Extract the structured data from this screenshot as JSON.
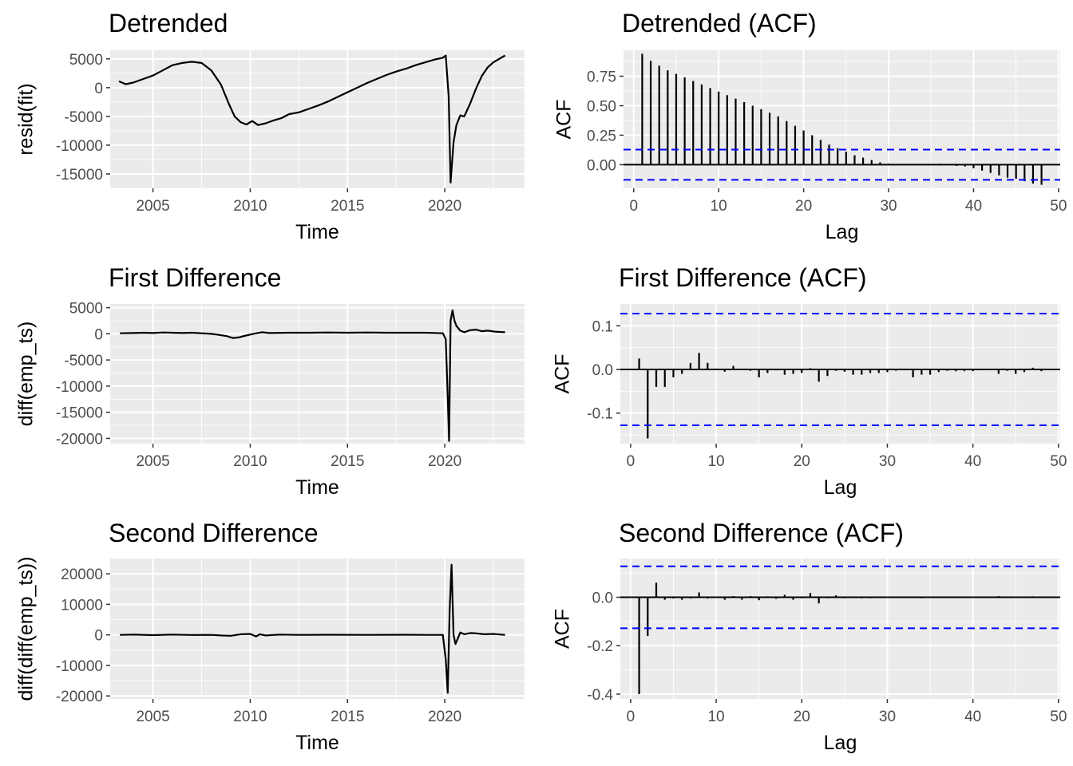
{
  "chart_data": [
    {
      "type": "line",
      "title": "Detrended",
      "xlabel": "Time",
      "ylabel": "resid(fit)",
      "xlim": [
        2002.8,
        2024.1
      ],
      "ylim": [
        -17500,
        6500
      ],
      "xticks": [
        2005,
        2010,
        2015,
        2020
      ],
      "yticks": [
        5000,
        0,
        -5000,
        -10000,
        -15000
      ],
      "ytick_labels": [
        "5000",
        "0",
        "-5000",
        "-10000",
        "-15000"
      ],
      "grid": true,
      "series": [
        {
          "x": [
            2003.25,
            2003.6,
            2004.0,
            2004.5,
            2005.0,
            2005.5,
            2006.0,
            2006.5,
            2007.0,
            2007.5,
            2008.0,
            2008.5,
            2008.9,
            2009.2,
            2009.5,
            2009.8,
            2010.1,
            2010.4,
            2010.8,
            2011.2,
            2011.6,
            2012.0,
            2012.5,
            2013.0,
            2013.5,
            2014.0,
            2014.5,
            2015.0,
            2015.5,
            2016.0,
            2016.5,
            2017.0,
            2017.5,
            2018.0,
            2018.5,
            2019.0,
            2019.5,
            2019.9,
            2020.05,
            2020.2,
            2020.3,
            2020.45,
            2020.6,
            2020.8,
            2021.0,
            2021.3,
            2021.6,
            2021.9,
            2022.2,
            2022.5,
            2022.8,
            2023.1
          ],
          "y": [
            1100,
            600,
            900,
            1500,
            2100,
            3000,
            3900,
            4300,
            4500,
            4300,
            3000,
            500,
            -2800,
            -5000,
            -6000,
            -6400,
            -5800,
            -6500,
            -6200,
            -5700,
            -5300,
            -4600,
            -4300,
            -3700,
            -3100,
            -2400,
            -1600,
            -800,
            0,
            800,
            1500,
            2200,
            2800,
            3300,
            3900,
            4400,
            4900,
            5200,
            5600,
            -1500,
            -16500,
            -9500,
            -6500,
            -4800,
            -5000,
            -2800,
            -200,
            2000,
            3500,
            4400,
            5000,
            5600
          ]
        }
      ]
    },
    {
      "type": "bar",
      "title": "Detrended (ACF)",
      "xlabel": "Lag",
      "ylabel": "ACF",
      "xlim": [
        -1.2,
        50.2
      ],
      "ylim": [
        -0.2,
        0.97
      ],
      "xticks": [
        0,
        10,
        20,
        30,
        40,
        50
      ],
      "yticks": [
        0.75,
        0.5,
        0.25,
        0.0
      ],
      "ytick_labels": [
        "0.75",
        "0.50",
        "0.25",
        "0.00"
      ],
      "confidence_band": 0.128,
      "grid": true,
      "lags": [
        1,
        2,
        3,
        4,
        5,
        6,
        7,
        8,
        9,
        10,
        11,
        12,
        13,
        14,
        15,
        16,
        17,
        18,
        19,
        20,
        21,
        22,
        23,
        24,
        25,
        26,
        27,
        28,
        29,
        30,
        31,
        32,
        33,
        34,
        35,
        36,
        37,
        38,
        39,
        40,
        41,
        42,
        43,
        44,
        45,
        46,
        47,
        48
      ],
      "values": [
        0.94,
        0.88,
        0.84,
        0.8,
        0.77,
        0.74,
        0.71,
        0.68,
        0.65,
        0.62,
        0.59,
        0.56,
        0.53,
        0.5,
        0.47,
        0.44,
        0.41,
        0.37,
        0.33,
        0.29,
        0.25,
        0.21,
        0.17,
        0.14,
        0.11,
        0.08,
        0.06,
        0.04,
        0.02,
        0.01,
        0.005,
        0.002,
        0.0,
        -0.002,
        -0.004,
        0.008,
        -0.006,
        -0.01,
        -0.015,
        -0.03,
        -0.05,
        -0.07,
        -0.09,
        -0.11,
        -0.12,
        -0.14,
        -0.16,
        -0.17
      ]
    },
    {
      "type": "line",
      "title": "First Difference",
      "xlabel": "Time",
      "ylabel": "diff(emp_ts)",
      "xlim": [
        2002.8,
        2024.1
      ],
      "ylim": [
        -21000,
        5700
      ],
      "xticks": [
        2005,
        2010,
        2015,
        2020
      ],
      "yticks": [
        5000,
        0,
        -5000,
        -10000,
        -15000,
        -20000
      ],
      "ytick_labels": [
        "5000",
        "0",
        "-5000",
        "-10000",
        "-15000",
        "-20000"
      ],
      "grid": true,
      "series": [
        {
          "x": [
            2003.3,
            2004.0,
            2004.5,
            2005.0,
            2005.5,
            2006.0,
            2006.5,
            2007.0,
            2007.5,
            2008.0,
            2008.4,
            2008.8,
            2009.1,
            2009.4,
            2009.7,
            2010.0,
            2010.3,
            2010.6,
            2011.0,
            2012.0,
            2013.0,
            2014.0,
            2015.0,
            2016.0,
            2017.0,
            2018.0,
            2019.0,
            2019.9,
            2020.05,
            2020.15,
            2020.22,
            2020.3,
            2020.4,
            2020.5,
            2020.6,
            2020.8,
            2021.0,
            2021.3,
            2021.6,
            2021.9,
            2022.2,
            2022.6,
            2023.1
          ],
          "y": [
            100,
            150,
            200,
            150,
            250,
            200,
            150,
            200,
            100,
            0,
            -200,
            -450,
            -800,
            -700,
            -400,
            -150,
            100,
            300,
            150,
            200,
            200,
            250,
            200,
            250,
            200,
            200,
            200,
            100,
            -1000,
            -12000,
            -20500,
            2500,
            4500,
            2500,
            1500,
            600,
            300,
            700,
            800,
            500,
            600,
            400,
            300
          ]
        }
      ]
    },
    {
      "type": "bar",
      "title": "First Difference (ACF)",
      "xlabel": "Lag",
      "ylabel": "ACF",
      "xlim": [
        -1.2,
        50.2
      ],
      "ylim": [
        -0.17,
        0.15
      ],
      "xticks": [
        0,
        10,
        20,
        30,
        40,
        50
      ],
      "yticks": [
        0.1,
        0.0,
        -0.1
      ],
      "ytick_labels": [
        "0.1",
        "0.0",
        "-0.1"
      ],
      "confidence_band": 0.128,
      "grid": true,
      "lags": [
        1,
        2,
        3,
        4,
        5,
        6,
        7,
        8,
        9,
        10,
        11,
        12,
        13,
        14,
        15,
        16,
        17,
        18,
        19,
        20,
        21,
        22,
        23,
        24,
        25,
        26,
        27,
        28,
        29,
        30,
        31,
        32,
        33,
        34,
        35,
        36,
        37,
        38,
        39,
        40,
        41,
        42,
        43,
        44,
        45,
        46,
        47,
        48
      ],
      "values": [
        0.025,
        -0.158,
        -0.04,
        -0.04,
        -0.018,
        -0.01,
        0.015,
        0.038,
        0.015,
        0.002,
        -0.005,
        0.008,
        0.002,
        -0.003,
        -0.018,
        -0.008,
        -0.002,
        -0.012,
        -0.01,
        -0.008,
        0.003,
        -0.028,
        -0.015,
        -0.003,
        -0.005,
        -0.012,
        -0.012,
        -0.008,
        -0.008,
        -0.006,
        -0.003,
        -0.002,
        -0.018,
        -0.012,
        -0.012,
        -0.006,
        -0.003,
        -0.004,
        -0.004,
        -0.004,
        -0.002,
        0.0,
        -0.01,
        -0.003,
        -0.01,
        -0.006,
        0.004,
        -0.004
      ]
    },
    {
      "type": "line",
      "title": "Second Difference",
      "xlabel": "Time",
      "ylabel": "diff(diff(emp_ts))",
      "xlim": [
        2002.8,
        2024.1
      ],
      "ylim": [
        -21000,
        25000
      ],
      "xticks": [
        2005,
        2010,
        2015,
        2020
      ],
      "yticks": [
        20000,
        10000,
        0,
        -10000,
        -20000
      ],
      "ytick_labels": [
        "20000",
        "10000",
        "0",
        "-10000",
        "-20000"
      ],
      "grid": true,
      "series": [
        {
          "x": [
            2003.3,
            2004.0,
            2005.0,
            2006.0,
            2007.0,
            2008.0,
            2008.5,
            2009.0,
            2009.5,
            2010.0,
            2010.3,
            2010.5,
            2010.8,
            2011.5,
            2012.5,
            2014.0,
            2016.0,
            2018.0,
            2019.0,
            2019.9,
            2020.05,
            2020.15,
            2020.25,
            2020.35,
            2020.45,
            2020.55,
            2020.65,
            2020.8,
            2021.0,
            2021.3,
            2021.6,
            2022.0,
            2022.5,
            2023.1
          ],
          "y": [
            0,
            100,
            -100,
            100,
            -50,
            0,
            -200,
            -300,
            200,
            300,
            -500,
            200,
            -200,
            100,
            0,
            50,
            0,
            50,
            0,
            0,
            -8000,
            -19000,
            8000,
            23000,
            0,
            -3000,
            -1500,
            800,
            200,
            600,
            500,
            200,
            300,
            0
          ]
        }
      ]
    },
    {
      "type": "bar",
      "title": "Second Difference (ACF)",
      "xlabel": "Lag",
      "ylabel": "ACF",
      "xlim": [
        -1.2,
        50.2
      ],
      "ylim": [
        -0.42,
        0.16
      ],
      "xticks": [
        0,
        10,
        20,
        30,
        40,
        50
      ],
      "yticks": [
        0.0,
        -0.2,
        -0.4
      ],
      "ytick_labels": [
        "0.0",
        "-0.2",
        "-0.4"
      ],
      "confidence_band": 0.128,
      "grid": true,
      "lags": [
        1,
        2,
        3,
        4,
        5,
        6,
        7,
        8,
        9,
        10,
        11,
        12,
        13,
        14,
        15,
        16,
        17,
        18,
        19,
        20,
        21,
        22,
        23,
        24,
        25,
        26,
        27,
        28,
        29,
        30,
        31,
        32,
        33,
        34,
        35,
        36,
        37,
        38,
        39,
        40,
        41,
        42,
        43,
        44,
        45,
        46,
        47,
        48
      ],
      "values": [
        -0.4,
        -0.16,
        0.06,
        -0.01,
        -0.005,
        -0.01,
        -0.005,
        0.02,
        -0.005,
        -0.002,
        -0.01,
        0.005,
        -0.01,
        0.005,
        -0.012,
        0.004,
        -0.006,
        0.01,
        -0.01,
        -0.004,
        0.018,
        -0.025,
        -0.004,
        0.008,
        -0.004,
        -0.002,
        -0.004,
        -0.004,
        -0.002,
        -0.002,
        -0.002,
        -0.002,
        0.002,
        -0.004,
        -0.002,
        -0.002,
        -0.002,
        -0.002,
        -0.002,
        -0.002,
        -0.002,
        0.0,
        0.005,
        -0.002,
        -0.002,
        -0.002,
        0.004,
        -0.002
      ]
    }
  ]
}
